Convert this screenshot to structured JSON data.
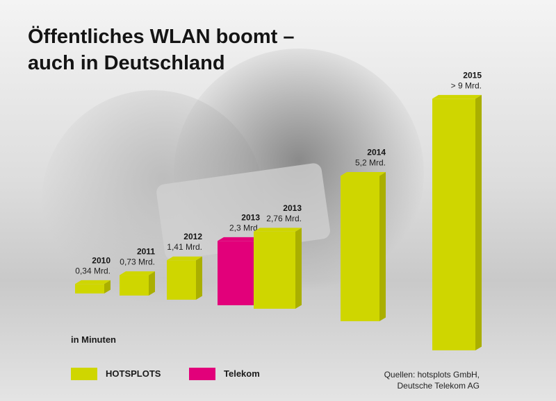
{
  "title_lines": [
    "Öffentliches WLAN boomt –",
    "auch in Deutschland"
  ],
  "unit_label": "in Minuten",
  "legend": [
    {
      "label": "HOTSPLOTS",
      "color": "#cfd600"
    },
    {
      "label": "Telekom",
      "color": "#e2007a"
    }
  ],
  "sources": [
    "Quellen: hotsplots GmbH,",
    "Deutsche Telekom AG"
  ],
  "colors": {
    "hotsplots": "#cfd600",
    "telekom": "#e2007a",
    "text": "#141414"
  },
  "chart_data": {
    "type": "bar",
    "categories": [
      "2010",
      "2011",
      "2012",
      "2013",
      "2013",
      "2014",
      "2015"
    ],
    "values": [
      0.34,
      0.73,
      1.41,
      2.3,
      2.76,
      5.2,
      9
    ],
    "value_labels": [
      "0,34 Mrd.",
      "0,73 Mrd.",
      "1,41 Mrd.",
      "2,3 Mrd.",
      "2,76 Mrd.",
      "5,2 Mrd.",
      "> 9 Mrd."
    ],
    "provider": [
      "hotsplots",
      "hotsplots",
      "hotsplots",
      "telekom",
      "hotsplots",
      "hotsplots",
      "hotsplots"
    ],
    "ylim": [
      0,
      9
    ],
    "grid": false,
    "legend_position": "bottom-left"
  }
}
